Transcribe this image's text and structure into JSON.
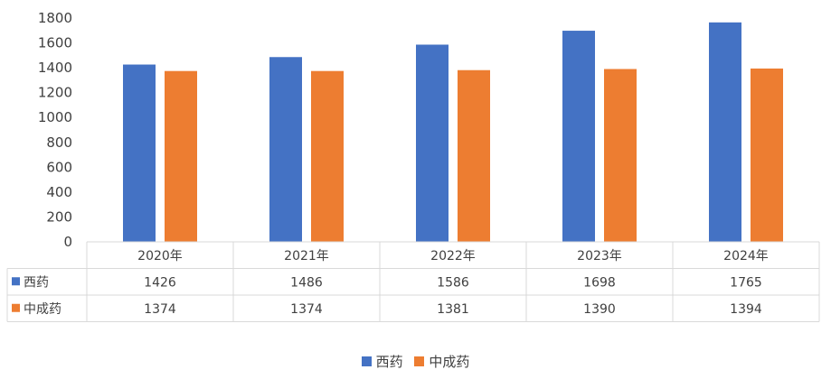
{
  "chart_data": {
    "type": "bar",
    "categories": [
      "2020年",
      "2021年",
      "2022年",
      "2023年",
      "2024年"
    ],
    "series": [
      {
        "name": "西药",
        "values": [
          1426,
          1486,
          1586,
          1698,
          1765
        ],
        "color": "#4472C4"
      },
      {
        "name": "中成药",
        "values": [
          1374,
          1374,
          1381,
          1390,
          1394
        ],
        "color": "#ED7D31"
      }
    ],
    "ylim": [
      0,
      1800
    ],
    "yticks": [
      "0",
      "200",
      "400",
      "600",
      "800",
      "1000",
      "1200",
      "1400",
      "1600",
      "1800"
    ],
    "grid": false,
    "data_table": true,
    "legend_position": "bottom"
  }
}
